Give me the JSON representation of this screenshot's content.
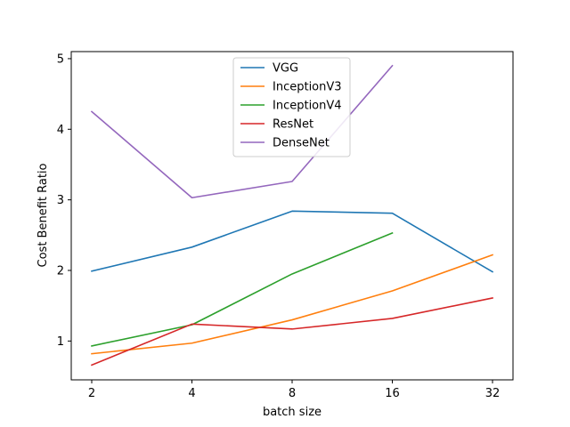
{
  "chart_data": {
    "type": "line",
    "xlabel": "batch size",
    "ylabel": "Cost Benefit Ratio",
    "x_scale": "log2",
    "x": [
      2,
      4,
      8,
      16,
      32
    ],
    "x_tick_labels": [
      "2",
      "4",
      "8",
      "16",
      "32"
    ],
    "ylim": [
      0.45,
      5.1
    ],
    "y_ticks": [
      1,
      2,
      3,
      4,
      5
    ],
    "y_tick_labels": [
      "1",
      "2",
      "3",
      "4",
      "5"
    ],
    "legend_position": "top-center",
    "grid": false,
    "series": [
      {
        "name": "VGG",
        "color": "#1f77b4",
        "x": [
          2,
          4,
          8,
          16,
          32
        ],
        "values": [
          1.99,
          2.33,
          2.84,
          2.81,
          1.98
        ]
      },
      {
        "name": "InceptionV3",
        "color": "#ff7f0e",
        "x": [
          2,
          4,
          8,
          16,
          32
        ],
        "values": [
          0.82,
          0.97,
          1.3,
          1.71,
          2.22
        ]
      },
      {
        "name": "InceptionV4",
        "color": "#2ca02c",
        "x": [
          2,
          4,
          8,
          16
        ],
        "values": [
          0.93,
          1.23,
          1.95,
          2.53
        ]
      },
      {
        "name": "ResNet",
        "color": "#d62728",
        "x": [
          2,
          4,
          8,
          16,
          32
        ],
        "values": [
          0.66,
          1.24,
          1.17,
          1.32,
          1.61
        ]
      },
      {
        "name": "DenseNet",
        "color": "#9467bd",
        "x": [
          2,
          4,
          8,
          16
        ],
        "values": [
          4.25,
          3.03,
          3.26,
          4.9
        ]
      }
    ]
  }
}
